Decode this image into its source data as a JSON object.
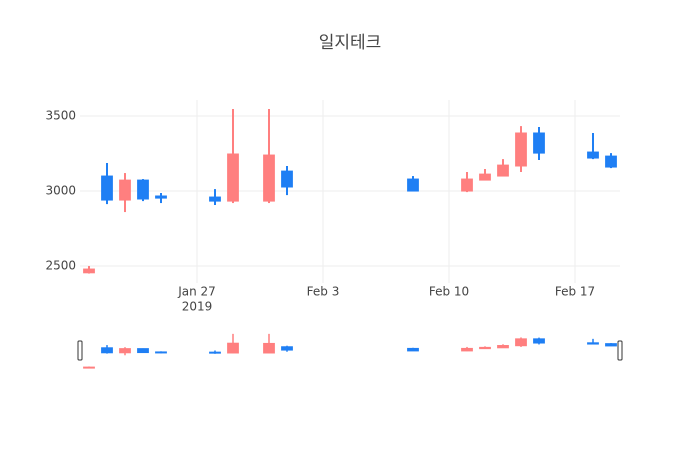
{
  "chart_data": {
    "type": "candlestick",
    "title": "일지테크",
    "x": [
      "2019-01-21",
      "2019-01-22",
      "2019-01-23",
      "2019-01-24",
      "2019-01-25",
      "2019-01-28",
      "2019-01-29",
      "2019-01-31",
      "2019-02-01",
      "2019-02-08",
      "2019-02-11",
      "2019-02-12",
      "2019-02-13",
      "2019-02-14",
      "2019-02-15",
      "2019-02-18",
      "2019-02-19"
    ],
    "open": [
      2455,
      3100,
      2940,
      3073,
      2967,
      2960,
      2933,
      2933,
      3133,
      3080,
      3000,
      3073,
      3100,
      3167,
      3387,
      3260,
      3233
    ],
    "high": [
      2500,
      3187,
      3120,
      3080,
      2987,
      3013,
      3547,
      3547,
      3167,
      3100,
      3127,
      3147,
      3213,
      3433,
      3427,
      3387,
      3253
    ],
    "low": [
      2450,
      2913,
      2860,
      2933,
      2920,
      2907,
      2920,
      2920,
      2973,
      3000,
      2993,
      3073,
      3100,
      3127,
      3207,
      3213,
      3153
    ],
    "close": [
      2480,
      2940,
      3073,
      2947,
      2953,
      2933,
      3247,
      3240,
      3027,
      3000,
      3080,
      3113,
      3173,
      3387,
      3253,
      3220,
      3160
    ],
    "increasing_color": "#ff7f7f",
    "decreasing_color": "#1f7ff4",
    "xlim": [
      "2019-01-20T12:00",
      "2019-02-19T12:00"
    ],
    "xticks": [
      {
        "value": "2019-01-27",
        "label": "Jan 27"
      },
      {
        "value": "2019-02-03",
        "label": "Feb 3"
      },
      {
        "value": "2019-02-10",
        "label": "Feb 10"
      },
      {
        "value": "2019-02-17",
        "label": "Feb 17"
      }
    ],
    "x_year_label": "2019",
    "ylim": [
      2387,
      3607
    ],
    "yticks": [
      2500,
      3000,
      3500
    ],
    "grid": true,
    "range_slider": true
  }
}
